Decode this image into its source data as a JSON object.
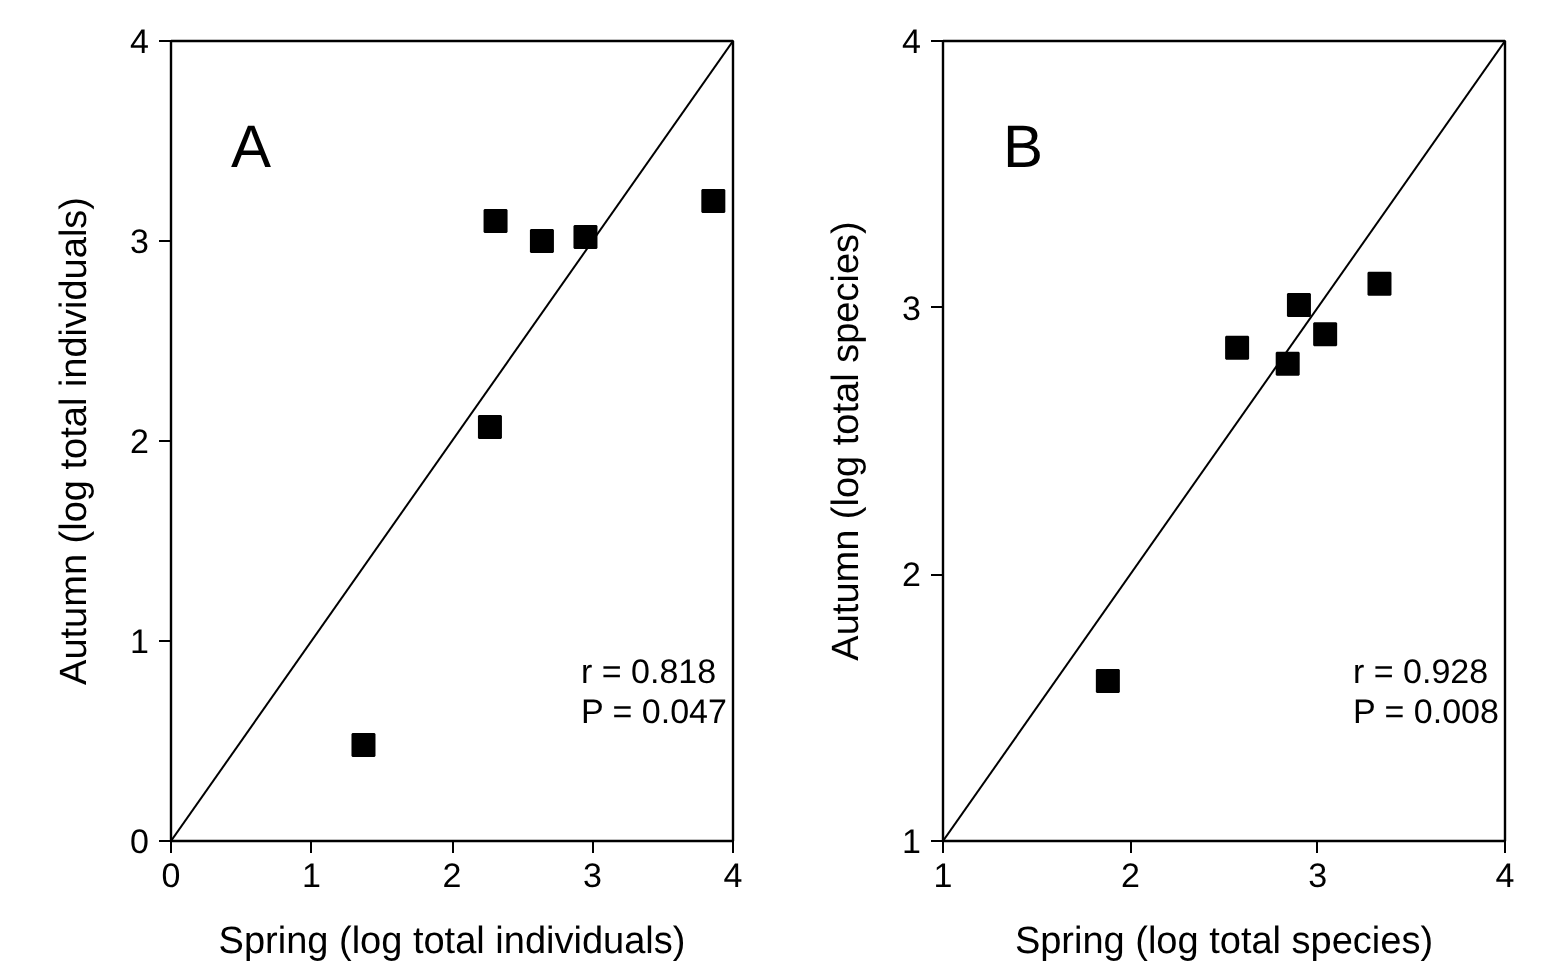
{
  "chart_data": [
    {
      "type": "scatter",
      "xlabel": "Spring (log total individuals)",
      "ylabel": "Autumn (log total individuals)",
      "xlim": [
        0,
        4
      ],
      "ylim": [
        0,
        4
      ],
      "xticks": [
        0,
        1,
        2,
        3,
        4
      ],
      "yticks": [
        0,
        1,
        2,
        3,
        4
      ],
      "grid": false,
      "annotations": [
        "A",
        "r = 0.818",
        "P = 0.047"
      ],
      "series": [
        {
          "color": "#000000",
          "marker": "square",
          "x": [
            1.37,
            2.27,
            2.31,
            2.64,
            2.95,
            3.86
          ],
          "values": [
            0.48,
            2.07,
            3.1,
            3.0,
            3.02,
            3.2
          ]
        },
        {
          "type": "line",
          "color": "#000000",
          "x": [
            0,
            4
          ],
          "values": [
            0,
            4
          ]
        }
      ]
    },
    {
      "type": "scatter",
      "xlabel": "Spring (log total species)",
      "ylabel": "Autumn (log total species)",
      "xlim": [
        1,
        4
      ],
      "ylim": [
        1,
        4
      ],
      "xticks": [
        1,
        2,
        3,
        4
      ],
      "yticks": [
        1,
        2,
        3,
        4
      ],
      "grid": false,
      "annotations": [
        "B",
        "r = 0.928",
        "P = 0.008"
      ],
      "series": [
        {
          "color": "#000000",
          "marker": "square",
          "x": [
            1.88,
            2.57,
            2.84,
            2.9,
            3.04,
            3.33
          ],
          "values": [
            1.6,
            2.85,
            2.79,
            3.01,
            2.9,
            3.09
          ]
        },
        {
          "type": "line",
          "color": "#000000",
          "x": [
            1,
            4
          ],
          "values": [
            1,
            4
          ]
        }
      ]
    }
  ]
}
